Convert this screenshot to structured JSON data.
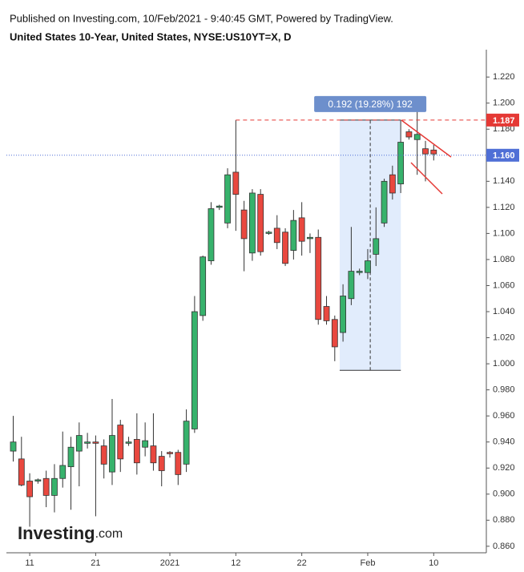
{
  "chart_data": {
    "type": "candlestick",
    "published": "Published on Investing.com, 10/Feb/2021 - 9:40:45 GMT, Powered by TradingView.",
    "title": "United States 10-Year, United States, NYSE:US10YT=X, D",
    "logo": {
      "name": "Investing",
      "suffix": ".com"
    },
    "categories": [
      null,
      null,
      "11",
      null,
      null,
      null,
      null,
      null,
      null,
      null,
      "21",
      null,
      null,
      null,
      null,
      null,
      null,
      null,
      null,
      "2021",
      null,
      null,
      null,
      null,
      null,
      null,
      null,
      "12",
      null,
      null,
      null,
      null,
      null,
      null,
      null,
      "22",
      null,
      null,
      null,
      null,
      null,
      null,
      null,
      "Feb",
      null,
      null,
      null,
      null,
      null,
      null,
      null,
      "10"
    ],
    "series": [
      {
        "name": "US10YT",
        "up_color": "#37b26c",
        "down_color": "#e9483f",
        "open": [
          0.933,
          0.927,
          0.91,
          0.91,
          0.912,
          0.899,
          0.912,
          0.921,
          0.933,
          0.939,
          0.94,
          0.937,
          0.917,
          0.953,
          0.939,
          0.942,
          0.936,
          0.937,
          0.929,
          0.932,
          0.932,
          0.923,
          0.95,
          1.037,
          1.079,
          1.12,
          1.108,
          1.147,
          1.118,
          1.085,
          1.13,
          1.1,
          1.104,
          1.101,
          1.087,
          1.112,
          1.096,
          1.097,
          1.044,
          1.034,
          1.024,
          1.05,
          1.07,
          1.07,
          1.084,
          1.108,
          1.145,
          1.138,
          1.178,
          1.172,
          1.165,
          1.164
        ],
        "high": [
          0.96,
          0.944,
          0.916,
          0.912,
          0.918,
          0.923,
          0.948,
          0.944,
          0.955,
          0.947,
          0.945,
          0.942,
          0.973,
          0.957,
          0.944,
          0.962,
          0.955,
          0.962,
          0.933,
          0.933,
          0.934,
          0.965,
          1.052,
          1.083,
          1.124,
          1.122,
          1.15,
          1.187,
          1.125,
          1.134,
          1.134,
          1.102,
          1.114,
          1.104,
          1.118,
          1.124,
          1.1,
          1.103,
          1.052,
          1.037,
          1.061,
          1.105,
          1.073,
          1.088,
          1.12,
          1.142,
          1.152,
          1.187,
          1.18,
          1.194,
          1.171,
          1.168
        ],
        "low": [
          0.925,
          0.906,
          0.875,
          0.908,
          0.89,
          0.886,
          0.905,
          0.888,
          0.906,
          0.935,
          0.883,
          0.912,
          0.907,
          0.917,
          0.937,
          0.915,
          0.929,
          0.918,
          0.906,
          0.928,
          0.907,
          0.917,
          0.947,
          1.033,
          1.076,
          1.118,
          1.104,
          1.102,
          1.071,
          1.079,
          1.083,
          1.099,
          1.088,
          1.075,
          1.08,
          1.083,
          1.085,
          1.03,
          1.03,
          1.002,
          1.017,
          1.045,
          1.068,
          1.065,
          1.075,
          1.105,
          1.126,
          1.131,
          1.172,
          1.145,
          1.14,
          1.156
        ],
        "close": [
          0.94,
          0.907,
          0.898,
          0.911,
          0.899,
          0.912,
          0.922,
          0.936,
          0.945,
          0.94,
          0.939,
          0.923,
          0.945,
          0.927,
          0.94,
          0.924,
          0.941,
          0.924,
          0.918,
          0.931,
          0.915,
          0.956,
          1.04,
          1.082,
          1.119,
          1.121,
          1.145,
          1.13,
          1.096,
          1.131,
          1.086,
          1.101,
          1.093,
          1.077,
          1.11,
          1.094,
          1.097,
          1.034,
          1.033,
          1.013,
          1.052,
          1.071,
          1.071,
          1.079,
          1.096,
          1.14,
          1.131,
          1.17,
          1.174,
          1.176,
          1.161,
          1.161
        ]
      }
    ],
    "price_lines": [
      {
        "value": 1.187,
        "label": "1.187",
        "color": "#e53935",
        "dash": "5,4"
      },
      {
        "value": 1.16,
        "label": "1.160",
        "color": "#4f6fd6",
        "dash": "1,2"
      }
    ],
    "measure": {
      "label": "0.192 (19.28%) 192",
      "low": 0.995,
      "high": 1.187
    },
    "ylim": [
      0.855,
      1.241
    ],
    "yticks": [
      {
        "value": 0.86,
        "label": "0.860"
      },
      {
        "value": 0.88,
        "label": "0.880"
      },
      {
        "value": 0.9,
        "label": "0.900"
      },
      {
        "value": 0.92,
        "label": "0.920"
      },
      {
        "value": 0.94,
        "label": "0.940"
      },
      {
        "value": 0.96,
        "label": "0.960"
      },
      {
        "value": 0.98,
        "label": "0.980"
      },
      {
        "value": 1.0,
        "label": "1.000"
      },
      {
        "value": 1.02,
        "label": "1.020"
      },
      {
        "value": 1.04,
        "label": "1.040"
      },
      {
        "value": 1.06,
        "label": "1.060"
      },
      {
        "value": 1.08,
        "label": "1.080"
      },
      {
        "value": 1.1,
        "label": "1.100"
      },
      {
        "value": 1.12,
        "label": "1.120"
      },
      {
        "value": 1.14,
        "label": "1.140"
      },
      {
        "value": 1.16,
        "label": "1.160"
      },
      {
        "value": 1.18,
        "label": "1.180"
      },
      {
        "value": 1.2,
        "label": "1.200"
      },
      {
        "value": 1.22,
        "label": "1.220"
      }
    ],
    "grid": false
  }
}
